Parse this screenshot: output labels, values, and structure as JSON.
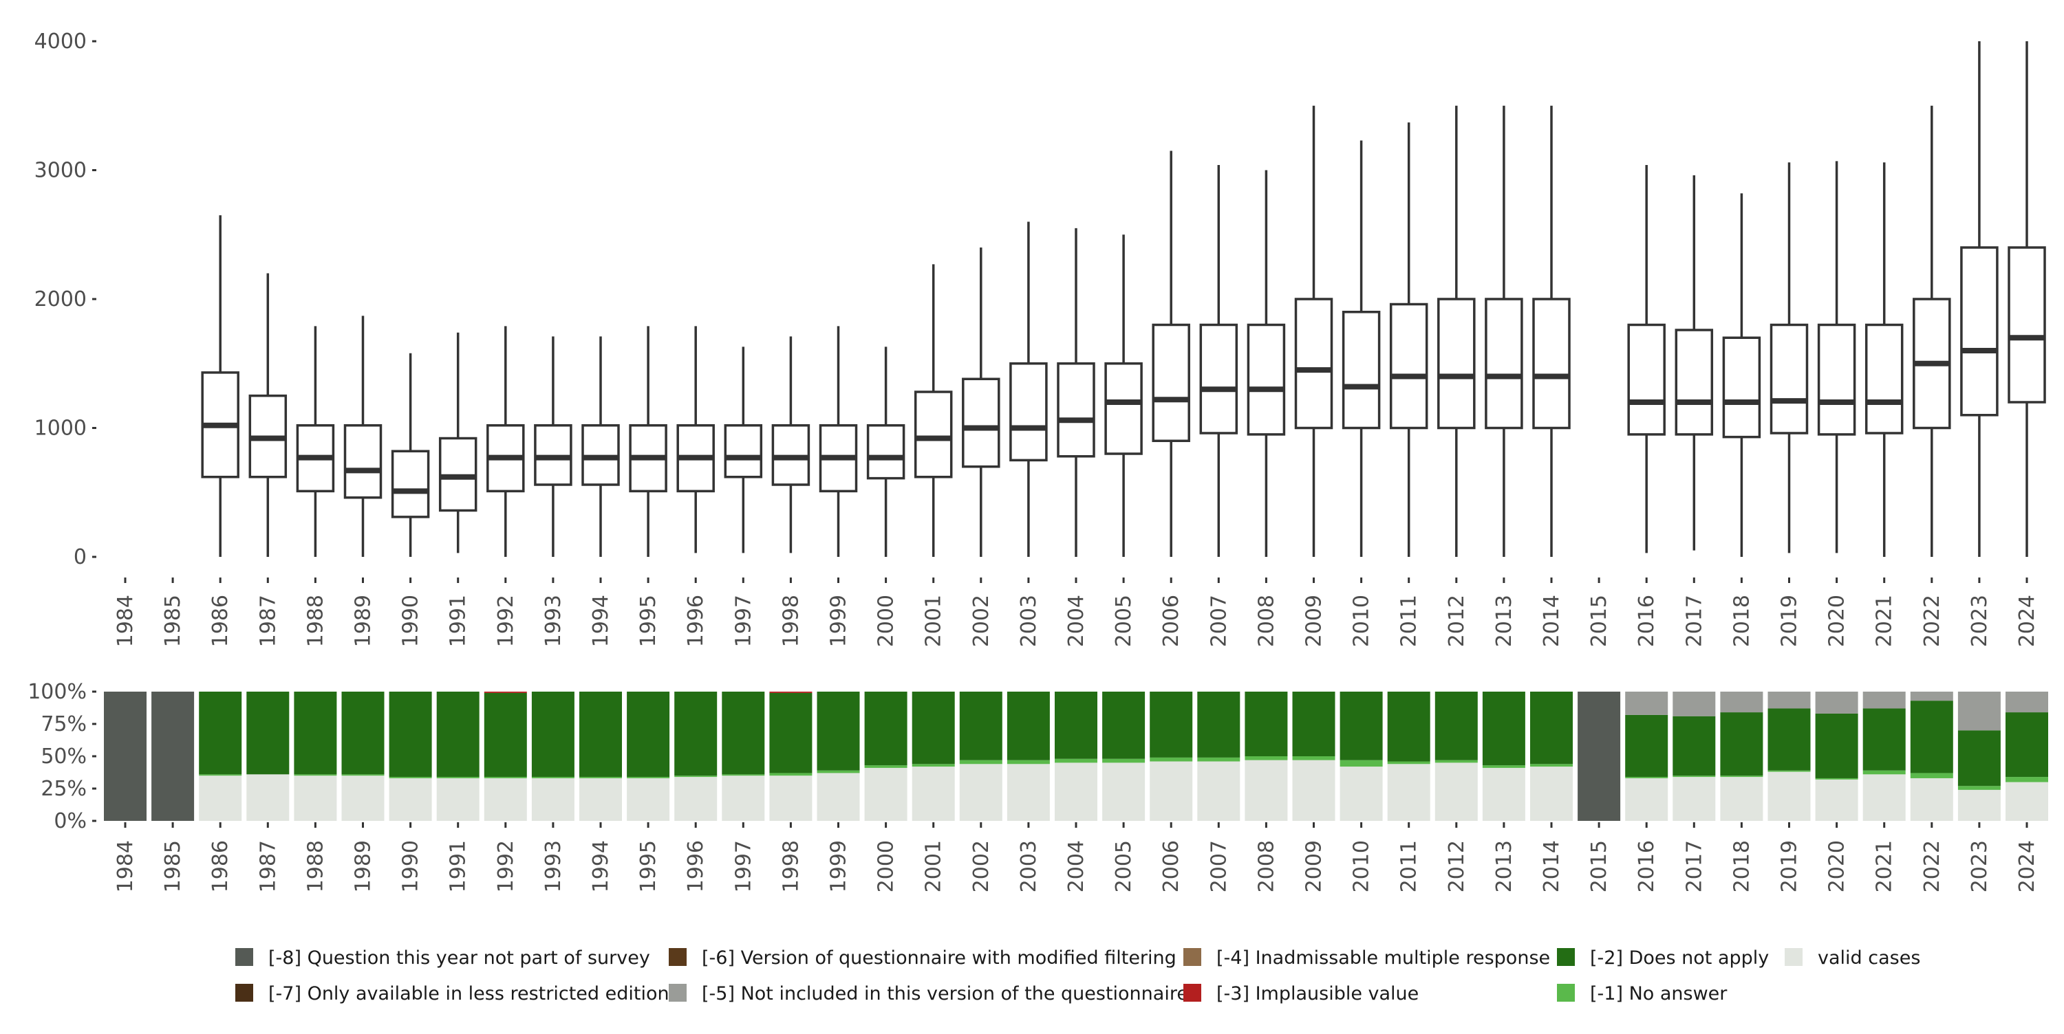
{
  "chart_data": [
    {
      "type": "box",
      "categories": [
        "1984",
        "1985",
        "1986",
        "1987",
        "1988",
        "1989",
        "1990",
        "1991",
        "1992",
        "1993",
        "1994",
        "1995",
        "1996",
        "1997",
        "1998",
        "1999",
        "2000",
        "2001",
        "2002",
        "2003",
        "2004",
        "2005",
        "2006",
        "2007",
        "2008",
        "2009",
        "2010",
        "2011",
        "2012",
        "2013",
        "2014",
        "2015",
        "2016",
        "2017",
        "2018",
        "2019",
        "2020",
        "2021",
        "2022",
        "2023",
        "2024"
      ],
      "ylim": [
        0,
        4000
      ],
      "yticks": [
        0,
        1000,
        2000,
        3000,
        4000
      ],
      "ytick_labels": [
        "0",
        "1000",
        "2000",
        "3000",
        "4000"
      ],
      "box_color": "#333333",
      "boxes": [
        null,
        null,
        {
          "low": 0,
          "q1": 620,
          "median": 1020,
          "q3": 1430,
          "high": 2650
        },
        {
          "low": 0,
          "q1": 620,
          "median": 920,
          "q3": 1250,
          "high": 2200
        },
        {
          "low": 0,
          "q1": 510,
          "median": 770,
          "q3": 1020,
          "high": 1790
        },
        {
          "low": 0,
          "q1": 460,
          "median": 670,
          "q3": 1020,
          "high": 1870
        },
        {
          "low": 0,
          "q1": 310,
          "median": 510,
          "q3": 820,
          "high": 1580
        },
        {
          "low": 30,
          "q1": 360,
          "median": 620,
          "q3": 920,
          "high": 1740
        },
        {
          "low": 0,
          "q1": 510,
          "median": 770,
          "q3": 1020,
          "high": 1790
        },
        {
          "low": 0,
          "q1": 560,
          "median": 770,
          "q3": 1020,
          "high": 1710
        },
        {
          "low": 0,
          "q1": 560,
          "median": 770,
          "q3": 1020,
          "high": 1710
        },
        {
          "low": 0,
          "q1": 510,
          "median": 770,
          "q3": 1020,
          "high": 1790
        },
        {
          "low": 30,
          "q1": 510,
          "median": 770,
          "q3": 1020,
          "high": 1790
        },
        {
          "low": 30,
          "q1": 620,
          "median": 770,
          "q3": 1020,
          "high": 1630
        },
        {
          "low": 30,
          "q1": 560,
          "median": 770,
          "q3": 1020,
          "high": 1710
        },
        {
          "low": 0,
          "q1": 510,
          "median": 770,
          "q3": 1020,
          "high": 1790
        },
        {
          "low": 0,
          "q1": 610,
          "median": 770,
          "q3": 1020,
          "high": 1630
        },
        {
          "low": 0,
          "q1": 620,
          "median": 920,
          "q3": 1280,
          "high": 2270
        },
        {
          "low": 0,
          "q1": 700,
          "median": 1000,
          "q3": 1380,
          "high": 2400
        },
        {
          "low": 0,
          "q1": 750,
          "median": 1000,
          "q3": 1500,
          "high": 2600
        },
        {
          "low": 0,
          "q1": 780,
          "median": 1060,
          "q3": 1500,
          "high": 2550
        },
        {
          "low": 0,
          "q1": 800,
          "median": 1200,
          "q3": 1500,
          "high": 2500
        },
        {
          "low": 0,
          "q1": 900,
          "median": 1220,
          "q3": 1800,
          "high": 3150
        },
        {
          "low": 0,
          "q1": 960,
          "median": 1300,
          "q3": 1800,
          "high": 3040
        },
        {
          "low": 0,
          "q1": 950,
          "median": 1300,
          "q3": 1800,
          "high": 3000
        },
        {
          "low": 0,
          "q1": 1000,
          "median": 1450,
          "q3": 2000,
          "high": 3500
        },
        {
          "low": 0,
          "q1": 1000,
          "median": 1320,
          "q3": 1900,
          "high": 3230
        },
        {
          "low": 0,
          "q1": 1000,
          "median": 1400,
          "q3": 1960,
          "high": 3370
        },
        {
          "low": 0,
          "q1": 1000,
          "median": 1400,
          "q3": 2000,
          "high": 3500
        },
        {
          "low": 0,
          "q1": 1000,
          "median": 1400,
          "q3": 2000,
          "high": 3500
        },
        {
          "low": 0,
          "q1": 1000,
          "median": 1400,
          "q3": 2000,
          "high": 3500
        },
        null,
        {
          "low": 30,
          "q1": 950,
          "median": 1200,
          "q3": 1800,
          "high": 3040
        },
        {
          "low": 50,
          "q1": 950,
          "median": 1200,
          "q3": 1760,
          "high": 2960
        },
        {
          "low": 0,
          "q1": 930,
          "median": 1200,
          "q3": 1700,
          "high": 2820
        },
        {
          "low": 30,
          "q1": 960,
          "median": 1210,
          "q3": 1800,
          "high": 3060
        },
        {
          "low": 30,
          "q1": 950,
          "median": 1200,
          "q3": 1800,
          "high": 3070
        },
        {
          "low": 0,
          "q1": 960,
          "median": 1200,
          "q3": 1800,
          "high": 3060
        },
        {
          "low": 0,
          "q1": 1000,
          "median": 1500,
          "q3": 2000,
          "high": 3500
        },
        {
          "low": 0,
          "q1": 1100,
          "median": 1600,
          "q3": 2400,
          "high": 4000
        },
        {
          "low": 0,
          "q1": 1200,
          "median": 1700,
          "q3": 2400,
          "high": 4000
        }
      ]
    },
    {
      "type": "bar",
      "stacked": true,
      "normalized": true,
      "categories": [
        "1984",
        "1985",
        "1986",
        "1987",
        "1988",
        "1989",
        "1990",
        "1991",
        "1992",
        "1993",
        "1994",
        "1995",
        "1996",
        "1997",
        "1998",
        "1999",
        "2000",
        "2001",
        "2002",
        "2003",
        "2004",
        "2005",
        "2006",
        "2007",
        "2008",
        "2009",
        "2010",
        "2011",
        "2012",
        "2013",
        "2014",
        "2015",
        "2016",
        "2017",
        "2018",
        "2019",
        "2020",
        "2021",
        "2022",
        "2023",
        "2024"
      ],
      "ylim": [
        0,
        1
      ],
      "yticks": [
        0,
        0.25,
        0.5,
        0.75,
        1
      ],
      "ytick_labels": [
        "0%",
        "25%",
        "50%",
        "75%",
        "100%"
      ],
      "series": [
        {
          "name": "valid cases",
          "color": "#e1e5df",
          "values": [
            0,
            0,
            0.35,
            0.36,
            0.35,
            0.35,
            0.33,
            0.33,
            0.33,
            0.33,
            0.33,
            0.33,
            0.34,
            0.35,
            0.35,
            0.37,
            0.41,
            0.42,
            0.44,
            0.44,
            0.45,
            0.45,
            0.46,
            0.46,
            0.47,
            0.47,
            0.42,
            0.44,
            0.45,
            0.41,
            0.42,
            0,
            0.33,
            0.34,
            0.34,
            0.38,
            0.32,
            0.36,
            0.33,
            0.24,
            0.3
          ]
        },
        {
          "name": "[-1] No answer",
          "color": "#5ab94b",
          "values": [
            0,
            0,
            0.01,
            0,
            0.01,
            0.01,
            0.01,
            0.01,
            0.01,
            0.01,
            0.01,
            0.01,
            0.01,
            0.01,
            0.02,
            0.02,
            0.02,
            0.02,
            0.03,
            0.03,
            0.03,
            0.03,
            0.03,
            0.03,
            0.03,
            0.03,
            0.05,
            0.02,
            0.02,
            0.02,
            0.02,
            0,
            0.01,
            0.01,
            0.01,
            0.01,
            0.01,
            0.03,
            0.04,
            0.03,
            0.04
          ]
        },
        {
          "name": "[-2] Does not apply",
          "color": "#236d14",
          "values": [
            0,
            0,
            0.64,
            0.64,
            0.64,
            0.64,
            0.66,
            0.66,
            0.65,
            0.66,
            0.66,
            0.66,
            0.65,
            0.64,
            0.62,
            0.61,
            0.57,
            0.56,
            0.53,
            0.53,
            0.52,
            0.52,
            0.51,
            0.51,
            0.5,
            0.5,
            0.53,
            0.54,
            0.53,
            0.57,
            0.56,
            0,
            0.48,
            0.46,
            0.49,
            0.48,
            0.5,
            0.48,
            0.56,
            0.43,
            0.5
          ]
        },
        {
          "name": "[-3] Implausible value",
          "color": "#b31f1f",
          "values": [
            0,
            0,
            0,
            0,
            0,
            0,
            0,
            0,
            0.01,
            0,
            0,
            0,
            0,
            0,
            0.01,
            0,
            0,
            0,
            0,
            0,
            0,
            0,
            0,
            0,
            0,
            0,
            0,
            0,
            0,
            0,
            0,
            0,
            0,
            0,
            0,
            0,
            0,
            0,
            0,
            0,
            0
          ]
        },
        {
          "name": "[-4] Inadmissable multiple response",
          "color": "#8e6c49",
          "values": [
            0,
            0,
            0,
            0,
            0,
            0,
            0,
            0,
            0,
            0,
            0,
            0,
            0,
            0,
            0,
            0,
            0,
            0,
            0,
            0,
            0,
            0,
            0,
            0,
            0,
            0,
            0,
            0,
            0,
            0,
            0,
            0,
            0,
            0,
            0,
            0,
            0,
            0,
            0,
            0,
            0
          ]
        },
        {
          "name": "[-5] Not included in this version of the questionnaire",
          "color": "#9a9c98",
          "values": [
            0,
            0,
            0,
            0,
            0,
            0,
            0,
            0,
            0,
            0,
            0,
            0,
            0,
            0,
            0,
            0,
            0,
            0,
            0,
            0,
            0,
            0,
            0,
            0,
            0,
            0,
            0,
            0,
            0,
            0,
            0,
            0,
            0.18,
            0.19,
            0.16,
            0.13,
            0.17,
            0.13,
            0.07,
            0.3,
            0.16
          ]
        },
        {
          "name": "[-6] Version of questionnaire with modified filtering",
          "color": "#5a3a1b",
          "values": [
            0,
            0,
            0,
            0,
            0,
            0,
            0,
            0,
            0,
            0,
            0,
            0,
            0,
            0,
            0,
            0,
            0,
            0,
            0,
            0,
            0,
            0,
            0,
            0,
            0,
            0,
            0,
            0,
            0,
            0,
            0,
            0,
            0,
            0,
            0,
            0,
            0,
            0,
            0,
            0,
            0
          ]
        },
        {
          "name": "[-7] Only available in less restricted edition",
          "color": "#4a2f16",
          "values": [
            0,
            0,
            0,
            0,
            0,
            0,
            0,
            0,
            0,
            0,
            0,
            0,
            0,
            0,
            0,
            0,
            0,
            0,
            0,
            0,
            0,
            0,
            0,
            0,
            0,
            0,
            0,
            0,
            0,
            0,
            0,
            0,
            0,
            0,
            0,
            0,
            0,
            0,
            0,
            0,
            0
          ]
        },
        {
          "name": "[-8] Question this year not part of survey",
          "color": "#555a55",
          "values": [
            1,
            1,
            0,
            0,
            0,
            0,
            0,
            0,
            0,
            0,
            0,
            0,
            0,
            0,
            0,
            0,
            0,
            0,
            0,
            0,
            0,
            0,
            0,
            0,
            0,
            0,
            0,
            0,
            0,
            0,
            0,
            1,
            0,
            0,
            0,
            0,
            0,
            0,
            0,
            0,
            0
          ]
        }
      ],
      "legend": {
        "placement": "bottom",
        "items": [
          {
            "label": "[-8] Question this year not part of survey",
            "color": "#555a55"
          },
          {
            "label": "[-7] Only available in less restricted edition",
            "color": "#4a2f16"
          },
          {
            "label": "[-6] Version of questionnaire with modified filtering",
            "color": "#5a3a1b"
          },
          {
            "label": "[-5] Not included in this version of the questionnaire",
            "color": "#9a9c98"
          },
          {
            "label": "[-4] Inadmissable multiple response",
            "color": "#8e6c49"
          },
          {
            "label": "[-3] Implausible value",
            "color": "#b31f1f"
          },
          {
            "label": "[-2] Does not apply",
            "color": "#236d14"
          },
          {
            "label": "[-1] No answer",
            "color": "#5ab94b"
          },
          {
            "label": "valid cases",
            "color": "#e1e5df"
          }
        ]
      }
    }
  ]
}
